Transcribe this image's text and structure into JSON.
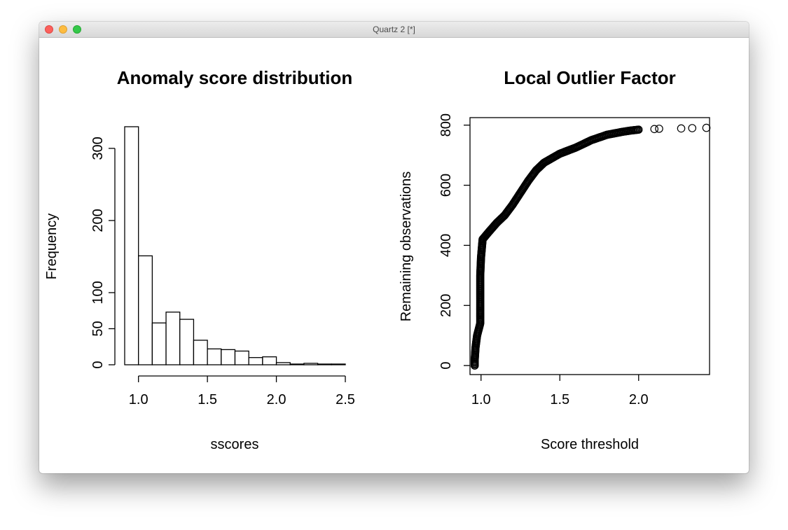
{
  "window": {
    "title": "Quartz 2 [*]"
  },
  "chart_data": [
    {
      "type": "bar",
      "title": "Anomaly score distribution",
      "xlabel": "sscores",
      "ylabel": "Frequency",
      "bins": [
        {
          "from": 0.9,
          "to": 1.0,
          "value": 330
        },
        {
          "from": 1.0,
          "to": 1.1,
          "value": 151
        },
        {
          "from": 1.1,
          "to": 1.2,
          "value": 58
        },
        {
          "from": 1.2,
          "to": 1.3,
          "value": 73
        },
        {
          "from": 1.3,
          "to": 1.4,
          "value": 63
        },
        {
          "from": 1.4,
          "to": 1.5,
          "value": 34
        },
        {
          "from": 1.5,
          "to": 1.6,
          "value": 22
        },
        {
          "from": 1.6,
          "to": 1.7,
          "value": 21
        },
        {
          "from": 1.7,
          "to": 1.8,
          "value": 19
        },
        {
          "from": 1.8,
          "to": 1.9,
          "value": 10
        },
        {
          "from": 1.9,
          "to": 2.0,
          "value": 11
        },
        {
          "from": 2.0,
          "to": 2.1,
          "value": 3
        },
        {
          "from": 2.1,
          "to": 2.2,
          "value": 1
        },
        {
          "from": 2.2,
          "to": 2.3,
          "value": 2
        },
        {
          "from": 2.3,
          "to": 2.4,
          "value": 1
        },
        {
          "from": 2.4,
          "to": 2.5,
          "value": 1
        }
      ],
      "x_ticks": [
        "1.0",
        "1.5",
        "2.0",
        "2.5"
      ],
      "y_ticks": [
        "0",
        "50",
        "100",
        "200",
        "300"
      ],
      "xlim": [
        0.9,
        2.5
      ],
      "ylim": [
        0,
        330
      ]
    },
    {
      "type": "scatter",
      "title": "Local Outlier Factor",
      "xlabel": "Score threshold",
      "ylabel": "Remaining observations",
      "x_ticks": [
        "1.0",
        "1.5",
        "2.0"
      ],
      "y_ticks": [
        "0",
        "200",
        "400",
        "600",
        "800"
      ],
      "xlim": [
        0.93,
        2.45
      ],
      "ylim": [
        -30,
        825
      ],
      "curve": [
        [
          0.96,
          0
        ],
        [
          0.96,
          20
        ],
        [
          0.965,
          60
        ],
        [
          0.97,
          80
        ],
        [
          0.975,
          100
        ],
        [
          0.985,
          120
        ],
        [
          0.995,
          140
        ],
        [
          0.995,
          200
        ],
        [
          0.995,
          300
        ],
        [
          1.0,
          360
        ],
        [
          1.01,
          420
        ],
        [
          1.05,
          445
        ],
        [
          1.1,
          475
        ],
        [
          1.15,
          500
        ],
        [
          1.2,
          535
        ],
        [
          1.25,
          575
        ],
        [
          1.3,
          615
        ],
        [
          1.35,
          650
        ],
        [
          1.4,
          675
        ],
        [
          1.5,
          705
        ],
        [
          1.6,
          725
        ],
        [
          1.7,
          750
        ],
        [
          1.8,
          768
        ],
        [
          1.9,
          778
        ],
        [
          1.95,
          782
        ],
        [
          2.0,
          785
        ]
      ],
      "outliers": [
        [
          2.1,
          787
        ],
        [
          2.13,
          788
        ],
        [
          2.27,
          789
        ],
        [
          2.34,
          790
        ],
        [
          2.43,
          791
        ]
      ]
    }
  ]
}
